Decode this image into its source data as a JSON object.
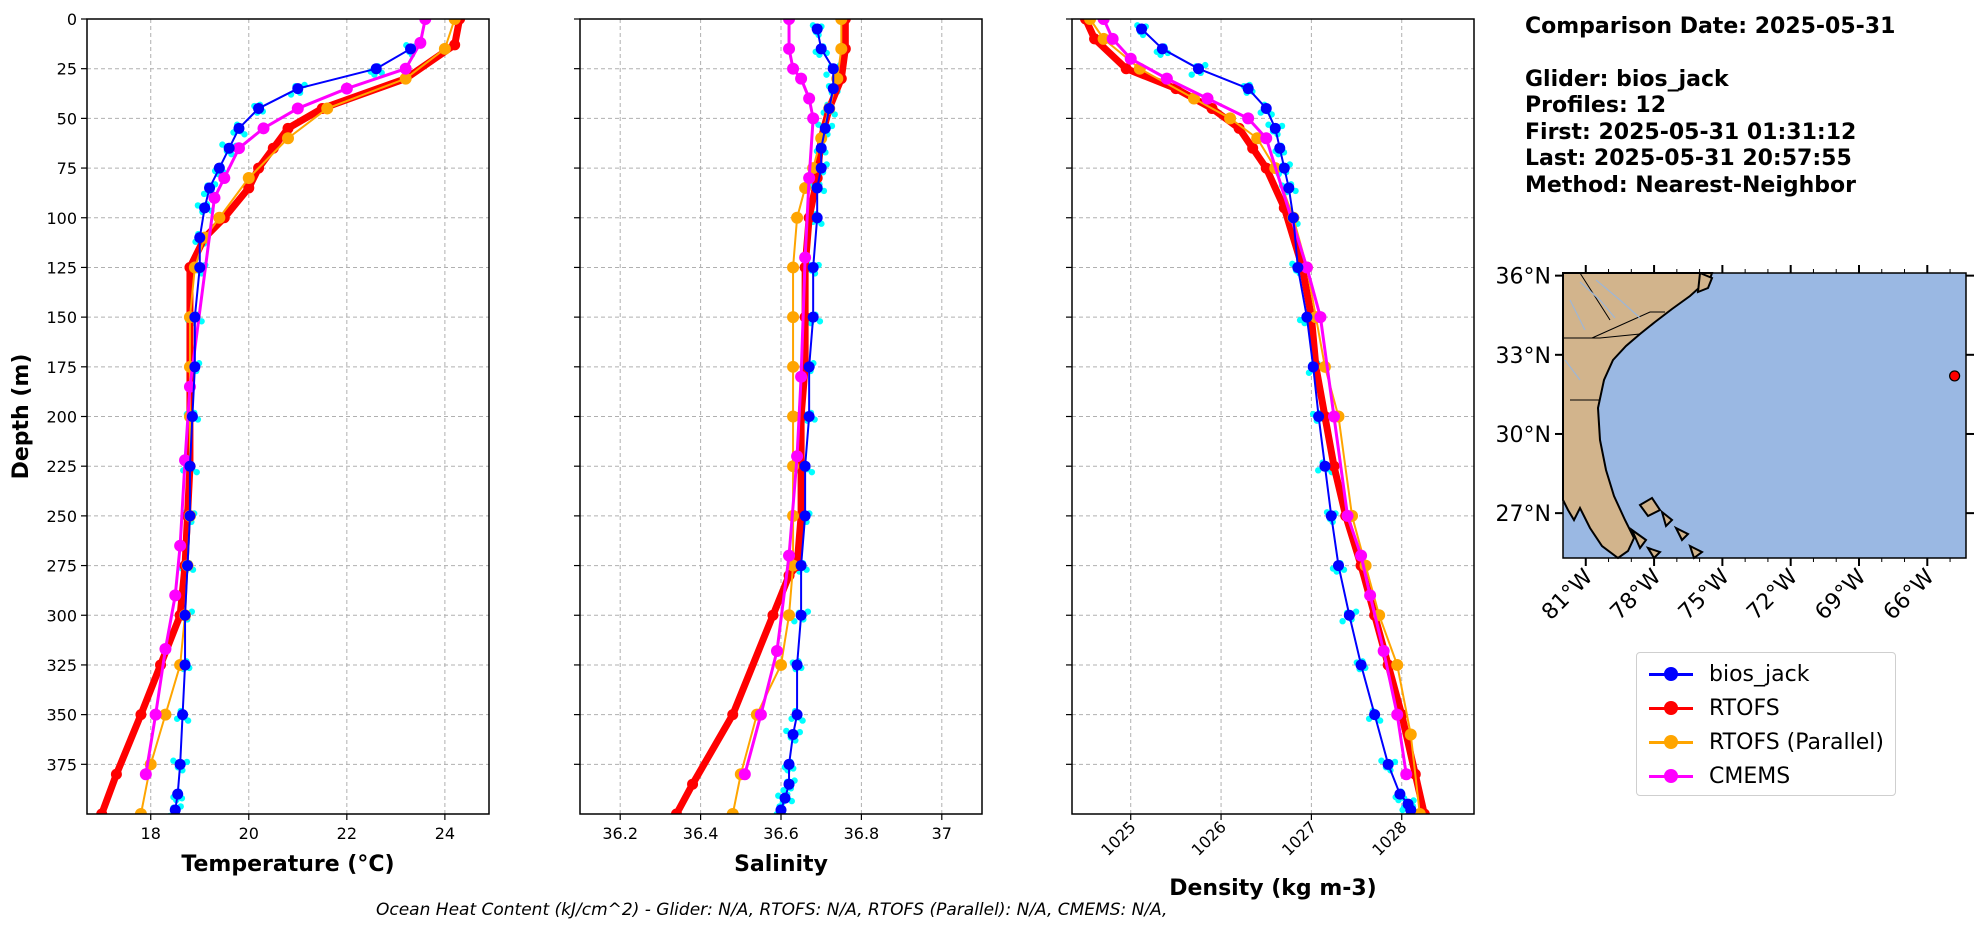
{
  "info": {
    "comparison_date": "Comparison Date: 2025-05-31",
    "glider": "Glider: bios_jack",
    "profiles": "Profiles: 12",
    "first": "First: 2025-05-31 01:31:12",
    "last": "Last: 2025-05-31 20:57:55",
    "method": "Method: Nearest-Neighbor"
  },
  "footer": "Ocean Heat Content (kJ/cm^2) - Glider: N/A,  RTOFS: N/A,  RTOFS (Parallel): N/A,  CMEMS: N/A,",
  "colors": {
    "glider": "#0000ff",
    "glider_scatter": "#00ffff",
    "rtofs": "#ff0000",
    "rtofs_parallel": "#ffa500",
    "cmems": "#ff00ff",
    "land": "#d2b48c",
    "ocean": "#9ab8e3",
    "grid": "#b0b0b0"
  },
  "legend": [
    {
      "label": "bios_jack",
      "color": "#0000ff"
    },
    {
      "label": "RTOFS",
      "color": "#ff0000"
    },
    {
      "label": "RTOFS (Parallel)",
      "color": "#ffa500"
    },
    {
      "label": "CMEMS",
      "color": "#ff00ff"
    }
  ],
  "map": {
    "lat_ticks": [
      "36°N",
      "33°N",
      "30°N",
      "27°N"
    ],
    "lon_ticks": [
      "81°W",
      "78°W",
      "75°W",
      "72°W",
      "69°W",
      "66°W"
    ],
    "glider_location": {
      "lon": -64.8,
      "lat": 32.2
    },
    "extent": {
      "lon": [
        -82.0,
        -64.3
      ],
      "lat": [
        25.3,
        36.1
      ]
    }
  },
  "chart_data": [
    {
      "type": "line",
      "xlabel": "Temperature (°C)",
      "ylabel": "Depth (m)",
      "xlim": [
        16.7,
        24.9
      ],
      "ylim": [
        400,
        0
      ],
      "xticks": [
        18,
        20,
        22,
        24
      ],
      "yticks": [
        0,
        25,
        50,
        75,
        100,
        125,
        150,
        175,
        200,
        225,
        250,
        275,
        300,
        325,
        350,
        375
      ],
      "grid": true,
      "series": [
        {
          "name": "bios_jack",
          "x": [
            23.3,
            22.6,
            21.0,
            20.2,
            19.8,
            19.6,
            19.4,
            19.2,
            19.1,
            19.0,
            19.0,
            18.9,
            18.9,
            18.85,
            18.8,
            18.8,
            18.75,
            18.7,
            18.7,
            18.65,
            18.6,
            18.55,
            18.5
          ],
          "y": [
            15,
            25,
            35,
            45,
            55,
            65,
            75,
            85,
            95,
            110,
            125,
            150,
            175,
            200,
            225,
            250,
            275,
            300,
            325,
            350,
            375,
            390,
            398
          ]
        },
        {
          "name": "RTOFS",
          "x": [
            24.3,
            24.2,
            23.2,
            21.5,
            20.8,
            20.5,
            20.2,
            20.0,
            19.5,
            19.1,
            18.8,
            18.8,
            18.8,
            18.8,
            18.8,
            18.75,
            18.7,
            18.6,
            18.2,
            17.8,
            17.3,
            17.0
          ],
          "y": [
            0,
            13,
            30,
            45,
            55,
            65,
            75,
            85,
            100,
            110,
            125,
            150,
            175,
            200,
            225,
            250,
            275,
            300,
            325,
            350,
            380,
            400
          ]
        },
        {
          "name": "RTOFS (Parallel)",
          "x": [
            24.2,
            24.0,
            23.2,
            21.6,
            20.8,
            20.0,
            19.4,
            19.1,
            18.9,
            18.8,
            18.8,
            18.8,
            18.8,
            18.75,
            18.7,
            18.6,
            18.3,
            18.0,
            17.8
          ],
          "y": [
            0,
            15,
            30,
            45,
            60,
            80,
            100,
            110,
            125,
            150,
            175,
            200,
            250,
            275,
            300,
            325,
            350,
            375,
            400
          ]
        },
        {
          "name": "CMEMS",
          "x": [
            23.6,
            23.5,
            23.2,
            22.0,
            21.0,
            20.3,
            19.8,
            19.5,
            19.3,
            18.8,
            18.7,
            18.6,
            18.5,
            18.3,
            18.1,
            17.9
          ],
          "y": [
            0,
            12,
            25,
            35,
            45,
            55,
            65,
            80,
            90,
            185,
            222,
            265,
            290,
            317,
            350,
            380
          ]
        }
      ]
    },
    {
      "type": "line",
      "xlabel": "Salinity",
      "xlim": [
        36.1,
        37.1
      ],
      "ylim": [
        400,
        0
      ],
      "xticks": [
        36.2,
        36.4,
        36.6,
        36.8,
        37.0
      ],
      "grid": true,
      "series": [
        {
          "name": "bios_jack",
          "x": [
            36.69,
            36.7,
            36.73,
            36.73,
            36.72,
            36.71,
            36.7,
            36.7,
            36.69,
            36.69,
            36.68,
            36.68,
            36.67,
            36.67,
            36.66,
            36.66,
            36.65,
            36.65,
            36.64,
            36.64,
            36.63,
            36.62,
            36.62,
            36.61,
            36.6
          ],
          "y": [
            5,
            15,
            25,
            35,
            45,
            55,
            65,
            75,
            85,
            100,
            125,
            150,
            175,
            200,
            225,
            250,
            275,
            300,
            325,
            350,
            360,
            375,
            385,
            392,
            398
          ]
        },
        {
          "name": "RTOFS",
          "x": [
            36.76,
            36.76,
            36.75,
            36.72,
            36.7,
            36.69,
            36.67,
            36.66,
            36.66,
            36.66,
            36.65,
            36.65,
            36.64,
            36.62,
            36.58,
            36.48,
            36.38,
            36.34
          ],
          "y": [
            0,
            15,
            30,
            45,
            60,
            80,
            100,
            125,
            150,
            175,
            200,
            250,
            275,
            280,
            300,
            350,
            385,
            400
          ]
        },
        {
          "name": "RTOFS (Parallel)",
          "x": [
            36.75,
            36.75,
            36.74,
            36.72,
            36.7,
            36.68,
            36.66,
            36.64,
            36.63,
            36.63,
            36.63,
            36.63,
            36.63,
            36.63,
            36.63,
            36.62,
            36.6,
            36.54,
            36.5,
            36.48
          ],
          "y": [
            0,
            15,
            30,
            45,
            60,
            75,
            85,
            100,
            125,
            150,
            175,
            200,
            225,
            250,
            275,
            300,
            325,
            350,
            380,
            400
          ]
        },
        {
          "name": "CMEMS",
          "x": [
            36.62,
            36.62,
            36.63,
            36.65,
            36.67,
            36.68,
            36.67,
            36.66,
            36.65,
            36.64,
            36.62,
            36.59,
            36.55,
            36.51
          ],
          "y": [
            0,
            15,
            25,
            30,
            40,
            50,
            80,
            120,
            180,
            220,
            270,
            318,
            350,
            380
          ]
        }
      ]
    },
    {
      "type": "line",
      "xlabel": "Density (kg m-3)",
      "xlim": [
        1024.35,
        1028.8
      ],
      "ylim": [
        400,
        0
      ],
      "xticks": [
        1025,
        1026,
        1027,
        1028
      ],
      "grid": true,
      "series": [
        {
          "name": "bios_jack",
          "x": [
            1025.12,
            1025.35,
            1025.75,
            1026.3,
            1026.5,
            1026.6,
            1026.65,
            1026.7,
            1026.75,
            1026.8,
            1026.85,
            1026.95,
            1027.02,
            1027.08,
            1027.15,
            1027.22,
            1027.3,
            1027.42,
            1027.55,
            1027.7,
            1027.85,
            1027.98,
            1028.07,
            1028.1
          ],
          "y": [
            5,
            15,
            25,
            35,
            45,
            55,
            65,
            75,
            85,
            100,
            125,
            150,
            175,
            200,
            225,
            250,
            275,
            300,
            325,
            350,
            375,
            390,
            395,
            398
          ]
        },
        {
          "name": "RTOFS",
          "x": [
            1024.5,
            1024.6,
            1024.95,
            1025.5,
            1025.9,
            1026.2,
            1026.35,
            1026.5,
            1026.7,
            1026.9,
            1027.0,
            1027.05,
            1027.15,
            1027.25,
            1027.38,
            1027.55,
            1027.7,
            1027.85,
            1028.0,
            1028.15,
            1028.25
          ],
          "y": [
            0,
            10,
            25,
            35,
            45,
            55,
            65,
            75,
            95,
            125,
            150,
            175,
            200,
            225,
            250,
            275,
            300,
            325,
            350,
            380,
            400
          ]
        },
        {
          "name": "RTOFS (Parallel)",
          "x": [
            1024.55,
            1024.7,
            1025.1,
            1025.7,
            1026.1,
            1026.4,
            1026.6,
            1026.8,
            1026.95,
            1027.05,
            1027.15,
            1027.3,
            1027.45,
            1027.6,
            1027.75,
            1027.95,
            1028.1,
            1028.2
          ],
          "y": [
            0,
            10,
            25,
            40,
            50,
            60,
            75,
            100,
            125,
            150,
            175,
            200,
            250,
            275,
            300,
            325,
            360,
            400
          ]
        },
        {
          "name": "CMEMS",
          "x": [
            1024.7,
            1024.8,
            1025.0,
            1025.4,
            1025.85,
            1026.3,
            1026.5,
            1026.95,
            1027.1,
            1027.25,
            1027.4,
            1027.55,
            1027.65,
            1027.8,
            1027.95,
            1028.05
          ],
          "y": [
            0,
            10,
            20,
            30,
            40,
            50,
            60,
            125,
            150,
            200,
            250,
            270,
            290,
            318,
            350,
            380
          ]
        }
      ]
    }
  ]
}
